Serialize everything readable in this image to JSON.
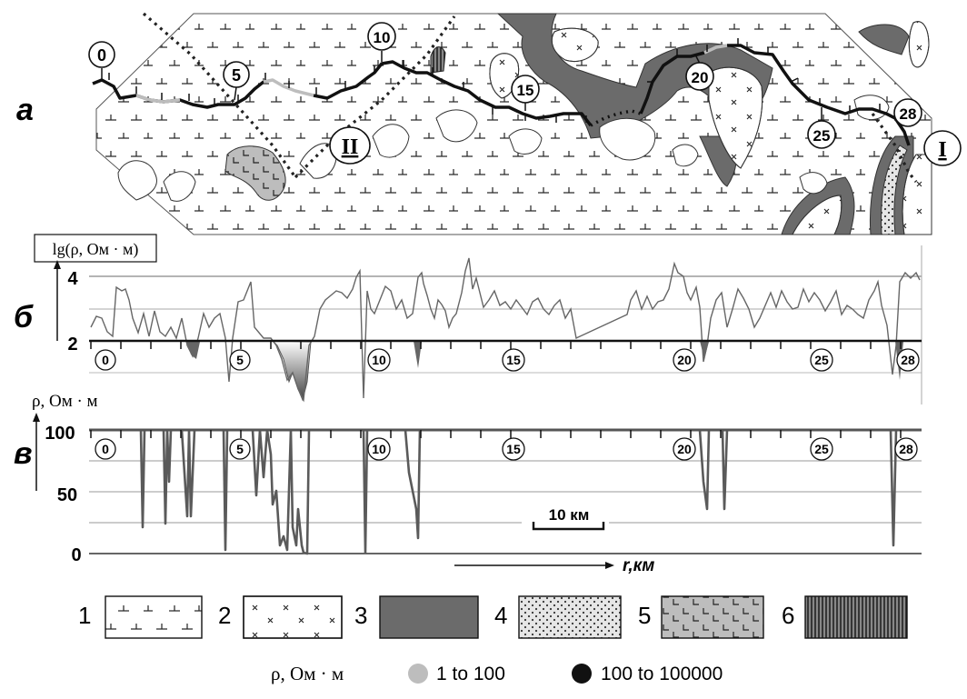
{
  "panels": {
    "a": "а",
    "b": "б",
    "v": "в"
  },
  "map": {
    "km_marks": [
      "0",
      "5",
      "10",
      "15",
      "20",
      "25",
      "28"
    ],
    "profiles": [
      "II",
      "I"
    ]
  },
  "chart_b": {
    "ylabel": "lg(ρ, Ом · м)",
    "yticks": [
      "4",
      "2"
    ],
    "km_marks": [
      "0",
      "5",
      "10",
      "15",
      "20",
      "25",
      "28"
    ]
  },
  "chart_v": {
    "ylabel": "ρ, Ом · м",
    "yticks": [
      "100",
      "50",
      "0"
    ],
    "km_marks": [
      "0",
      "5",
      "10",
      "15",
      "20",
      "25",
      "28"
    ],
    "scale_bar": "10 км",
    "xaxis_label": "r,км"
  },
  "legend": {
    "items": [
      {
        "num": "1",
        "pattern": "dash-ticks"
      },
      {
        "num": "2",
        "pattern": "crosses"
      },
      {
        "num": "3",
        "pattern": "dark-gray",
        "color": "#6b6b6b"
      },
      {
        "num": "4",
        "pattern": "dots"
      },
      {
        "num": "5",
        "pattern": "L-marks",
        "color": "#bdbdbd"
      },
      {
        "num": "6",
        "pattern": "vertical-hatch"
      }
    ],
    "rho_label": "ρ, Ом · м",
    "low_label": "1 to 100",
    "low_color": "#bdbdbd",
    "high_label": "100 to 100000",
    "high_color": "#111111"
  }
}
